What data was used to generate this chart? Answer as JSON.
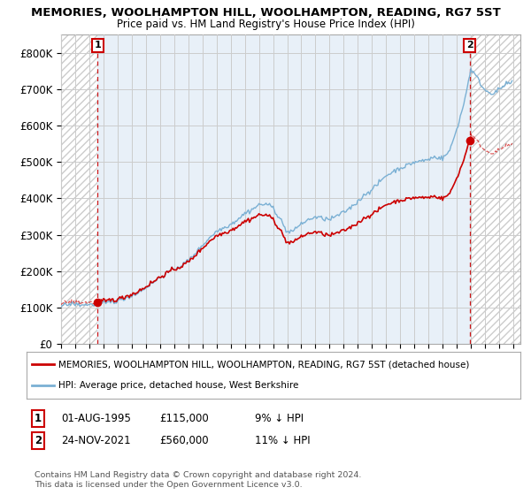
{
  "title": "MEMORIES, WOOLHAMPTON HILL, WOOLHAMPTON, READING, RG7 5ST",
  "subtitle": "Price paid vs. HM Land Registry's House Price Index (HPI)",
  "xlim_start": 1993.0,
  "xlim_end": 2025.5,
  "ylim": [
    0,
    850000
  ],
  "yticks": [
    0,
    100000,
    200000,
    300000,
    400000,
    500000,
    600000,
    700000,
    800000
  ],
  "ytick_labels": [
    "£0",
    "£100K",
    "£200K",
    "£300K",
    "£400K",
    "£500K",
    "£600K",
    "£700K",
    "£800K"
  ],
  "xtick_years": [
    1993,
    1994,
    1995,
    1996,
    1997,
    1998,
    1999,
    2000,
    2001,
    2002,
    2003,
    2004,
    2005,
    2006,
    2007,
    2008,
    2009,
    2010,
    2011,
    2012,
    2013,
    2014,
    2015,
    2016,
    2017,
    2018,
    2019,
    2020,
    2021,
    2022,
    2023,
    2024,
    2025
  ],
  "sale1_x": 1995.58,
  "sale1_y": 115000,
  "sale2_x": 2021.9,
  "sale2_y": 560000,
  "line_color_red": "#cc0000",
  "line_color_blue": "#7ab0d4",
  "dot_color": "#cc0000",
  "annotation_box_color": "#cc0000",
  "bg_color": "#ffffff",
  "bg_hatch_color": "#e8e8e8",
  "bg_blue_color": "#e8f0f8",
  "grid_color": "#cccccc",
  "legend_label_red": "MEMORIES, WOOLHAMPTON HILL, WOOLHAMPTON, READING, RG7 5ST (detached house)",
  "legend_label_blue": "HPI: Average price, detached house, West Berkshire",
  "note1_date": "01-AUG-1995",
  "note1_price": "£115,000",
  "note1_hpi": "9% ↓ HPI",
  "note2_date": "24-NOV-2021",
  "note2_price": "£560,000",
  "note2_hpi": "11% ↓ HPI",
  "copyright": "Contains HM Land Registry data © Crown copyright and database right 2024.\nThis data is licensed under the Open Government Licence v3.0."
}
